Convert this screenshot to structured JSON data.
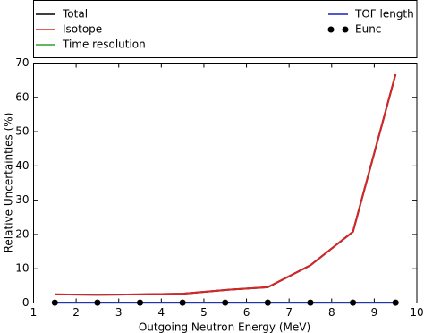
{
  "chart_data": {
    "type": "line",
    "x_label": "Outgoing Neutron Energy (MeV)",
    "y_label": "Relative Uncertainties (%)",
    "x": [
      1.5,
      2.5,
      3.5,
      4.5,
      5.5,
      6.5,
      7.5,
      8.5,
      9.5
    ],
    "series": [
      {
        "name": "Total",
        "color": "#000000",
        "style": "line",
        "values": [
          2.5,
          2.4,
          2.5,
          2.7,
          3.8,
          4.6,
          11,
          20.8,
          66.7
        ]
      },
      {
        "name": "Isotope",
        "color": "#d62728",
        "style": "line",
        "values": [
          2.5,
          2.4,
          2.5,
          2.7,
          3.8,
          4.6,
          11,
          20.8,
          66.7
        ]
      },
      {
        "name": "Time resolution",
        "color": "#2ca02c",
        "style": "line",
        "values": [
          0.1,
          0.1,
          0.1,
          0.1,
          0.1,
          0.1,
          0.1,
          0.1,
          0.1
        ]
      },
      {
        "name": "TOF length",
        "color": "#1f1fbf",
        "style": "line",
        "values": [
          0.1,
          0.1,
          0.1,
          0.1,
          0.1,
          0.1,
          0.1,
          0.1,
          0.1
        ]
      },
      {
        "name": "Eunc",
        "color": "#000000",
        "style": "dots",
        "values": [
          0.1,
          0.1,
          0.1,
          0.1,
          0.1,
          0.1,
          0.1,
          0.1,
          0.1
        ]
      }
    ],
    "xlim": [
      1,
      10
    ],
    "xticks": [
      1,
      2,
      3,
      4,
      5,
      6,
      7,
      8,
      9,
      10
    ],
    "ylim": [
      0,
      70
    ],
    "yticks": [
      0,
      10,
      20,
      30,
      40,
      50,
      60,
      70
    ],
    "grid": false
  }
}
